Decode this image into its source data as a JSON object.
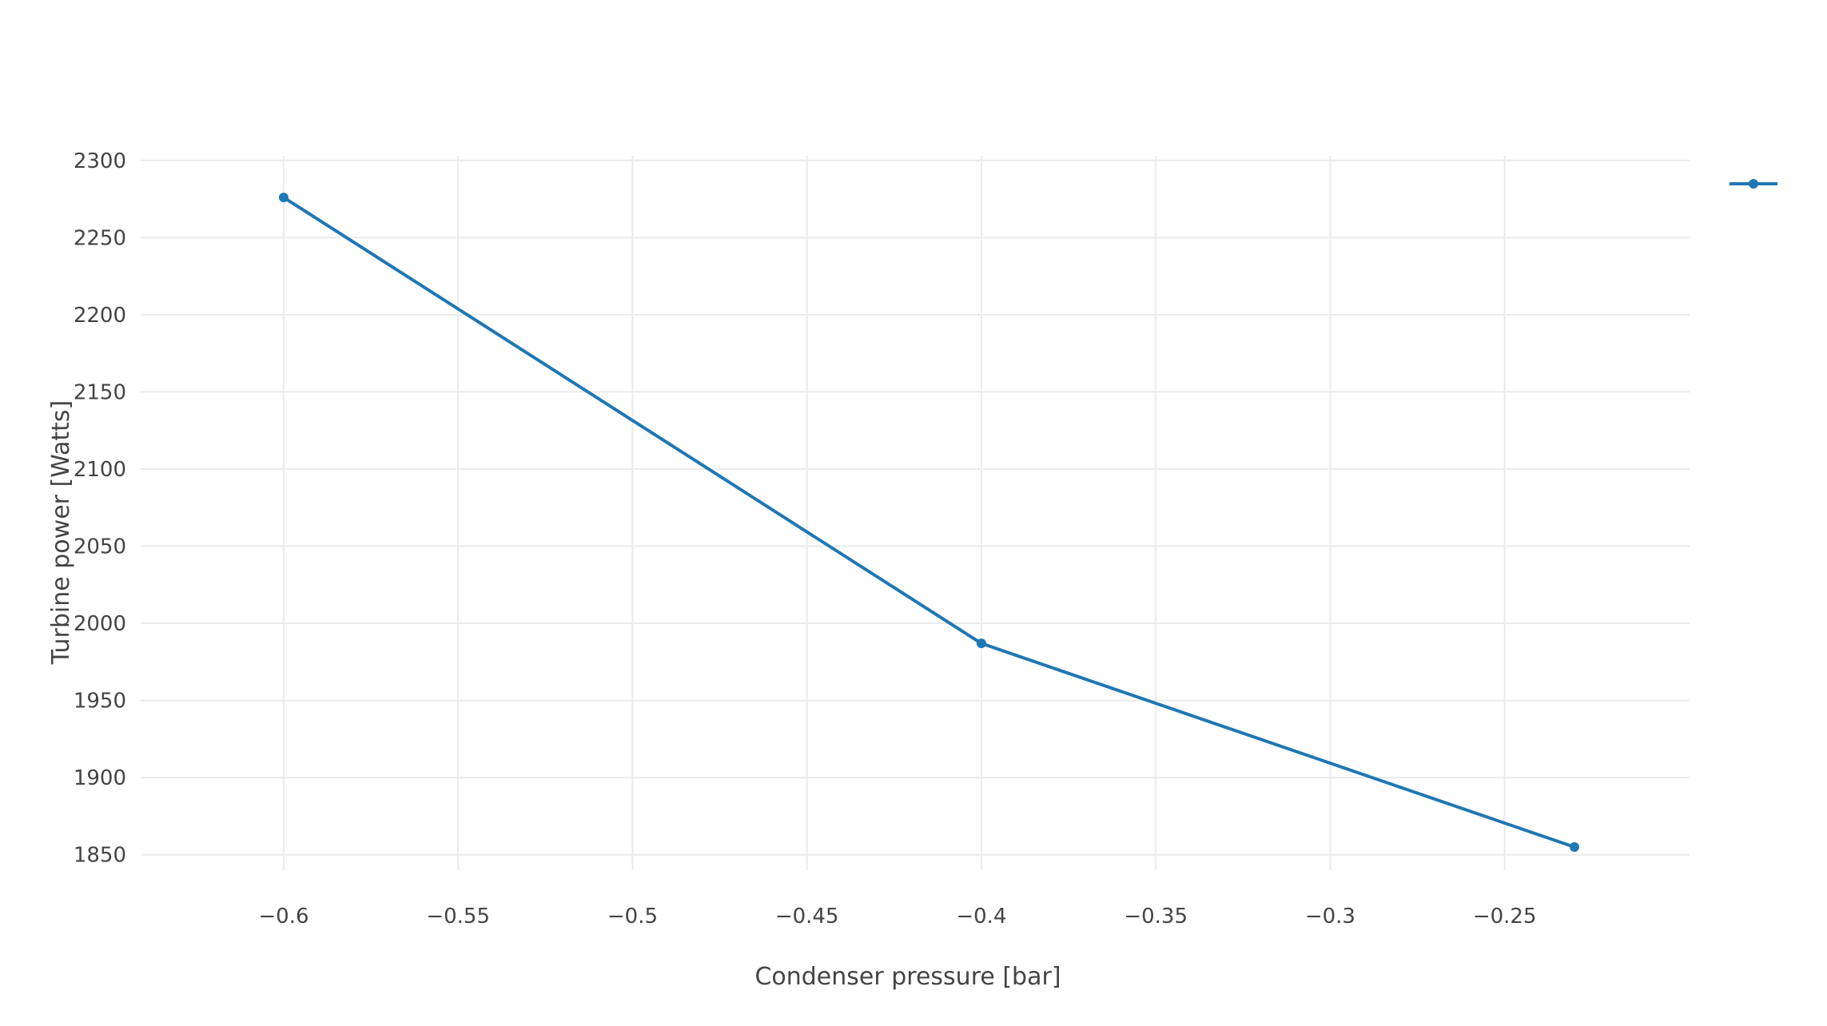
{
  "chart_data": {
    "type": "line",
    "title": "",
    "xlabel": "Condenser pressure [bar]",
    "ylabel": "Turbine power [Watts]",
    "xlim": [
      -0.641,
      -0.197
    ],
    "ylim": [
      1840,
      2303
    ],
    "x_ticks": [
      -0.6,
      -0.55,
      -0.5,
      -0.45,
      -0.4,
      -0.35,
      -0.3,
      -0.25
    ],
    "x_tick_labels": [
      "−0.6",
      "−0.55",
      "−0.5",
      "−0.45",
      "−0.4",
      "−0.35",
      "−0.3",
      "−0.25"
    ],
    "y_ticks": [
      1850,
      1900,
      1950,
      2000,
      2050,
      2100,
      2150,
      2200,
      2250,
      2300
    ],
    "y_tick_labels": [
      "1850",
      "1900",
      "1950",
      "2000",
      "2050",
      "2100",
      "2150",
      "2200",
      "2250",
      "2300"
    ],
    "grid": true,
    "legend": "top-right",
    "series": [
      {
        "color": "#1f77b4",
        "mode": "lines+markers",
        "x": [
          -0.6,
          -0.4,
          -0.23
        ],
        "y": [
          2276,
          1987,
          1855
        ]
      }
    ]
  }
}
